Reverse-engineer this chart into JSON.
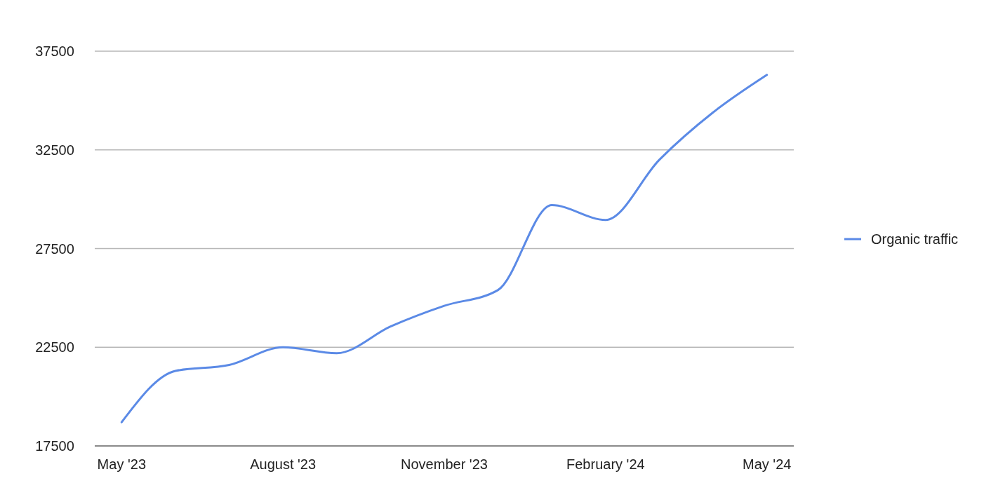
{
  "chart_data": {
    "type": "line",
    "categories": [
      "May '23",
      null,
      null,
      "August '23",
      null,
      null,
      "November '23",
      null,
      null,
      "February '24",
      null,
      null,
      "May '24"
    ],
    "series": [
      {
        "name": "Organic traffic",
        "color": "#5b8ae6",
        "values": [
          18700,
          21300,
          21600,
          22500,
          22200,
          23550,
          24600,
          25400,
          29700,
          28950,
          32000,
          34400,
          36300
        ]
      }
    ],
    "ylim": [
      17500,
      37500
    ],
    "yticks": [
      17500,
      22500,
      27500,
      32500,
      37500
    ],
    "grid": "y",
    "legend": "right",
    "marker": "none",
    "line_style": "solid"
  }
}
